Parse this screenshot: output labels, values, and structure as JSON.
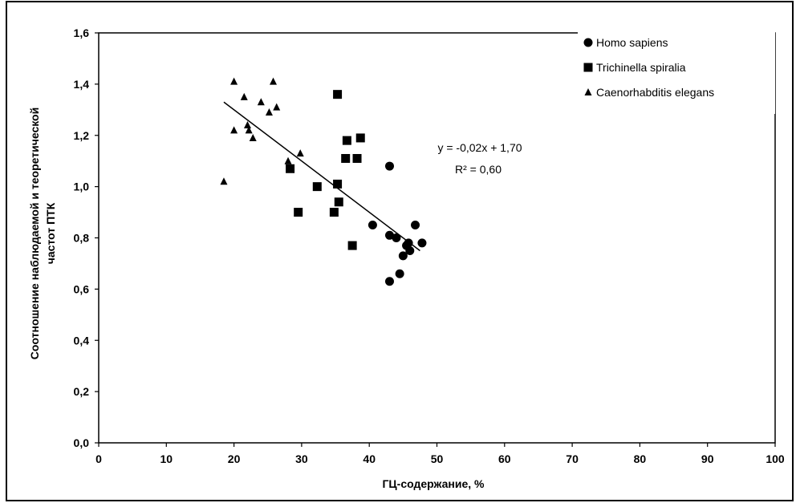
{
  "chart_data": {
    "type": "scatter",
    "title": "",
    "xlabel": "ГЦ-содержание, %",
    "ylabel_lines": [
      "Соотношение наблюдаемой и теоретической",
      "частот ПТК"
    ],
    "xlim": [
      0,
      100
    ],
    "ylim": [
      0.0,
      1.6
    ],
    "x_ticks": [
      "0",
      "10",
      "20",
      "30",
      "40",
      "50",
      "60",
      "70",
      "80",
      "90",
      "100"
    ],
    "y_ticks": [
      "0,0",
      "0,2",
      "0,4",
      "0,6",
      "0,8",
      "1,0",
      "1,2",
      "1,4",
      "1,6"
    ],
    "grid": false,
    "legend_position": "top-right",
    "series": [
      {
        "name": "Homo sapiens",
        "marker": "circle",
        "points": [
          {
            "x": 43.0,
            "y": 1.08
          },
          {
            "x": 40.5,
            "y": 0.85
          },
          {
            "x": 43.0,
            "y": 0.81
          },
          {
            "x": 44.0,
            "y": 0.8
          },
          {
            "x": 46.8,
            "y": 0.85
          },
          {
            "x": 45.8,
            "y": 0.78
          },
          {
            "x": 47.8,
            "y": 0.78
          },
          {
            "x": 46.0,
            "y": 0.75
          },
          {
            "x": 45.0,
            "y": 0.73
          },
          {
            "x": 44.5,
            "y": 0.66
          },
          {
            "x": 43.0,
            "y": 0.63
          },
          {
            "x": 45.5,
            "y": 0.77
          }
        ]
      },
      {
        "name": "Trichinella spiralia",
        "marker": "square",
        "points": [
          {
            "x": 35.3,
            "y": 1.36
          },
          {
            "x": 36.7,
            "y": 1.18
          },
          {
            "x": 38.7,
            "y": 1.19
          },
          {
            "x": 36.5,
            "y": 1.11
          },
          {
            "x": 38.2,
            "y": 1.11
          },
          {
            "x": 28.3,
            "y": 1.07
          },
          {
            "x": 32.3,
            "y": 1.0
          },
          {
            "x": 35.3,
            "y": 1.01
          },
          {
            "x": 35.5,
            "y": 0.94
          },
          {
            "x": 29.5,
            "y": 0.9
          },
          {
            "x": 34.8,
            "y": 0.9
          },
          {
            "x": 37.5,
            "y": 0.77
          }
        ]
      },
      {
        "name": "Caenorhabditis elegans",
        "marker": "triangle",
        "points": [
          {
            "x": 20.0,
            "y": 1.41
          },
          {
            "x": 25.8,
            "y": 1.41
          },
          {
            "x": 21.5,
            "y": 1.35
          },
          {
            "x": 24.0,
            "y": 1.33
          },
          {
            "x": 26.3,
            "y": 1.31
          },
          {
            "x": 25.2,
            "y": 1.29
          },
          {
            "x": 22.0,
            "y": 1.24
          },
          {
            "x": 22.2,
            "y": 1.22
          },
          {
            "x": 20.0,
            "y": 1.22
          },
          {
            "x": 22.8,
            "y": 1.19
          },
          {
            "x": 29.8,
            "y": 1.13
          },
          {
            "x": 28.0,
            "y": 1.1
          },
          {
            "x": 18.5,
            "y": 1.02
          }
        ]
      }
    ],
    "trendline": {
      "x_range": [
        18.5,
        47.5
      ],
      "slope": -0.02,
      "intercept": 1.7,
      "equation": "y = -0,02x + 1,70",
      "r_squared": "R² = 0,60"
    }
  }
}
